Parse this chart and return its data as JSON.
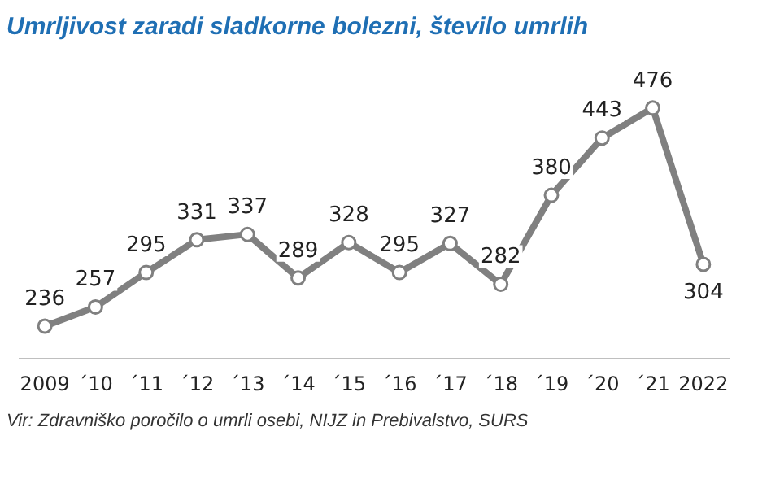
{
  "chart_data": {
    "type": "line",
    "title": "Umrljivost zaradi sladkorne bolezni, število umrlih",
    "categories": [
      "2009",
      "´10",
      "´11",
      "´12",
      "´13",
      "´14",
      "´15",
      "´16",
      "´17",
      "´18",
      "´19",
      "´20",
      "´21",
      "2022"
    ],
    "series": [
      {
        "color": "#808080",
        "values": [
          236,
          257,
          295,
          331,
          337,
          289,
          328,
          295,
          327,
          282,
          380,
          443,
          476,
          304
        ]
      }
    ],
    "data_labels": true,
    "marker": "circle",
    "grid": false,
    "legend": false,
    "annotations": [
      "Vir: Zdravniško poročilo o umrli osebi, NIJZ in Prebivalstvo, SURS"
    ]
  }
}
